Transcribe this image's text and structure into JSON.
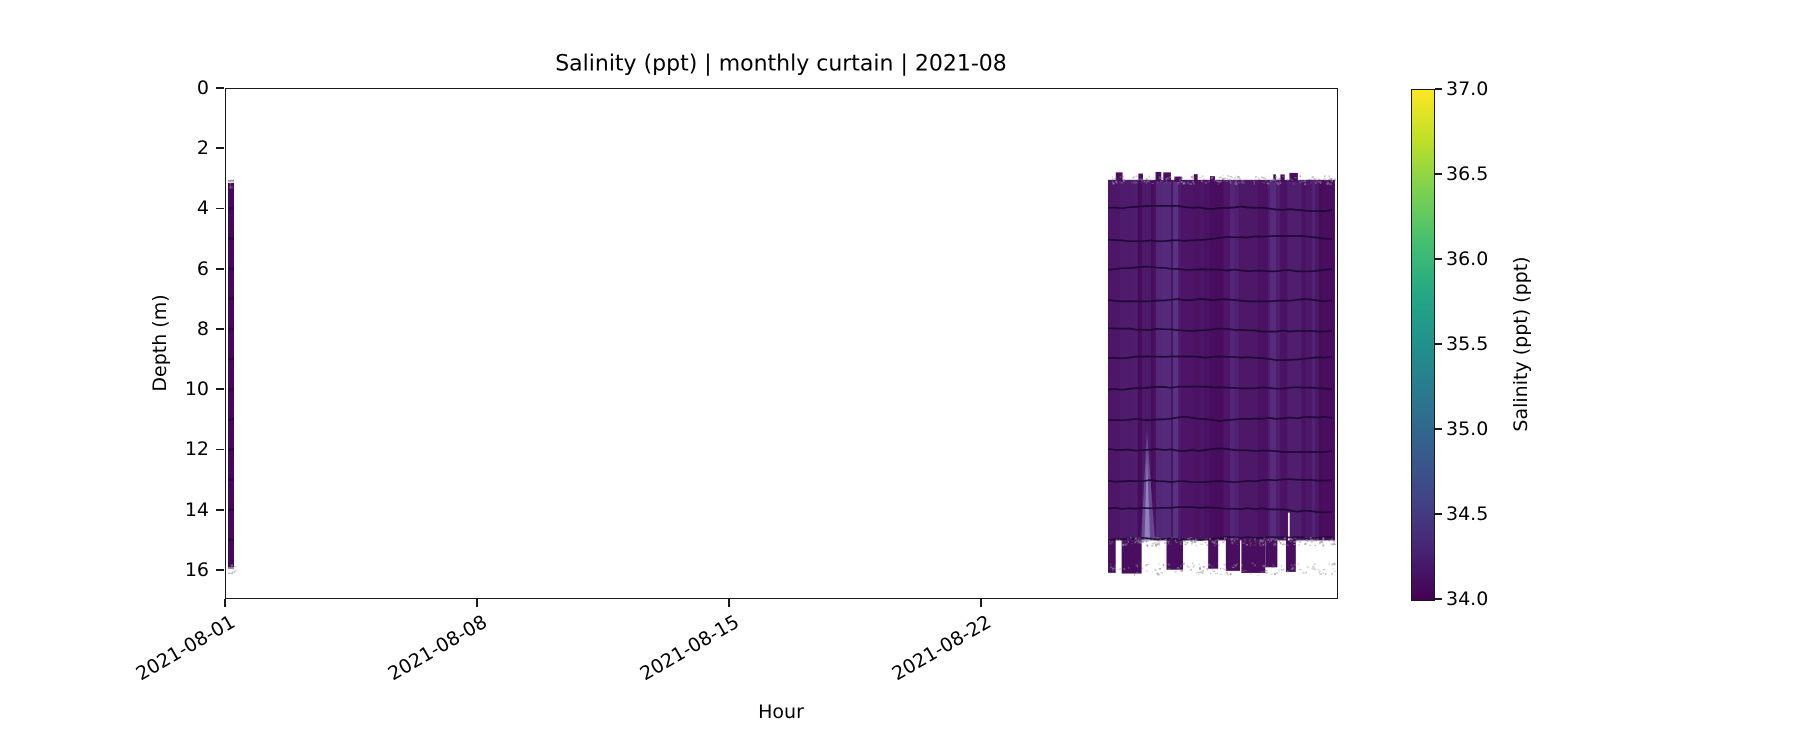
{
  "figure": {
    "title": "Salinity (ppt) | monthly curtain | 2021-08",
    "xlabel": "Hour",
    "ylabel": "Depth (m)"
  },
  "axes": {
    "x_ticklabels": [
      "2021-08-01",
      "2021-08-08",
      "2021-08-15",
      "2021-08-22"
    ],
    "y_ticklabels": [
      "0",
      "2",
      "4",
      "6",
      "8",
      "10",
      "12",
      "14",
      "16"
    ]
  },
  "colorbar": {
    "label": "Salinity (ppt) (ppt)",
    "ticklabels": [
      "37.0",
      "36.5",
      "36.0",
      "35.5",
      "35.0",
      "34.5",
      "34.0"
    ],
    "colormap": "viridis",
    "vmin": 34.0,
    "vmax": 37.0
  },
  "chart_data": {
    "type": "heatmap",
    "title": "Salinity (ppt) | monthly curtain | 2021-08",
    "xlabel": "Hour",
    "ylabel": "Depth (m)",
    "x_range": [
      "2021-08-01 00:00",
      "2021-09-01 00:00"
    ],
    "x_tick_values": [
      "2021-08-01",
      "2021-08-08",
      "2021-08-15",
      "2021-08-22"
    ],
    "y_axis": {
      "units": "m",
      "range": [
        0,
        17
      ],
      "inverted": true,
      "ticks": [
        0,
        2,
        4,
        6,
        8,
        10,
        12,
        14,
        16
      ]
    },
    "color_axis": {
      "label": "Salinity (ppt) (ppt)",
      "vmin": 34.0,
      "vmax": 37.0,
      "ticks": [
        37.0,
        36.5,
        36.0,
        35.5,
        35.0,
        34.5,
        34.0
      ],
      "colormap": "viridis"
    },
    "grid": false,
    "legend": "colorbar-right",
    "segments": [
      {
        "name": "early-month narrow strip",
        "x_start_day_offset": 0.06,
        "x_end_day_offset": 0.22,
        "depth_top_m": 3.1,
        "depth_bottom_m": 16.0,
        "salinity_ppt_approx": 34.1
      },
      {
        "name": "late-month curtain block",
        "x_start_day_offset": 24.5,
        "x_end_day_offset": 30.9,
        "depth_top_m": 3.0,
        "depth_bottom_m": 15.0,
        "ragged_bottom_max_depth_m": 16.1,
        "ragged_top_min_depth_m": 2.8,
        "salinity_ppt_approx": 34.1,
        "salinity_ppt_range_observed": [
          34.0,
          34.6
        ]
      }
    ],
    "contour_line_depths_m": [
      4,
      5,
      6,
      7,
      8,
      9,
      10,
      11,
      12,
      13,
      14,
      15
    ],
    "no_data_gap_day_offsets": [
      0.25,
      24.5
    ]
  }
}
